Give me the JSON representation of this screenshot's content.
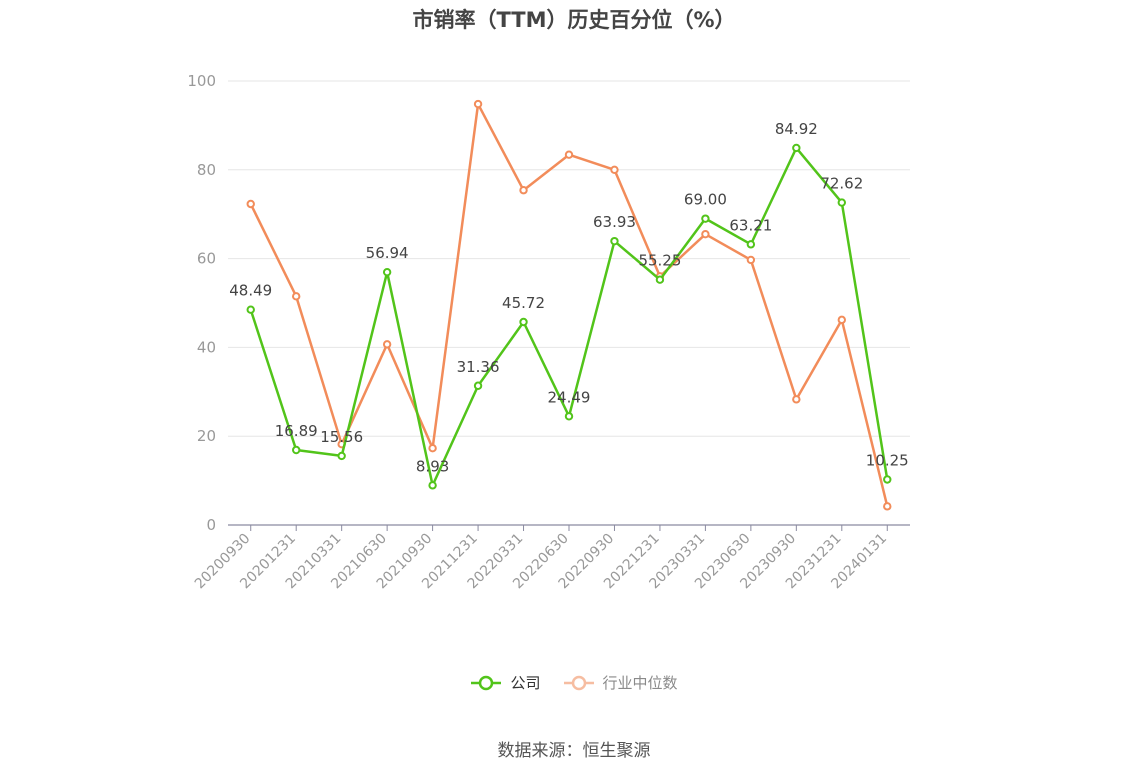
{
  "chart_data": {
    "type": "line",
    "title": "市销率（TTM）历史百分位（%）",
    "categories": [
      "20200930",
      "20201231",
      "20210331",
      "20210630",
      "20210930",
      "20211231",
      "20220331",
      "20220630",
      "20220930",
      "20221231",
      "20230331",
      "20230630",
      "20230930",
      "20231231",
      "20240131"
    ],
    "series": [
      {
        "name": "公司",
        "color": "#52c41a",
        "values": [
          48.49,
          16.89,
          15.56,
          56.94,
          8.93,
          31.36,
          45.72,
          24.49,
          63.93,
          55.25,
          69.0,
          63.21,
          84.92,
          72.62,
          10.25
        ],
        "labels": [
          "48.49",
          "16.89",
          "15.56",
          "56.94",
          "8.93",
          "31.36",
          "45.72",
          "24.49",
          "63.93",
          "55.25",
          "69.00",
          "63.21",
          "84.92",
          "72.62",
          "10.25"
        ]
      },
      {
        "name": "行业中位数",
        "color": "#f28c5a",
        "values": [
          72.3,
          51.5,
          18.2,
          40.7,
          17.3,
          94.8,
          75.4,
          83.4,
          80.0,
          56.0,
          65.5,
          59.7,
          28.3,
          46.2,
          4.2
        ]
      }
    ],
    "ylim": [
      0,
      100
    ],
    "yticks": [
      "0",
      "20",
      "40",
      "60",
      "80",
      "100"
    ],
    "grid": true,
    "legend_position": "bottom"
  },
  "source_text": "数据来源：恒生聚源"
}
